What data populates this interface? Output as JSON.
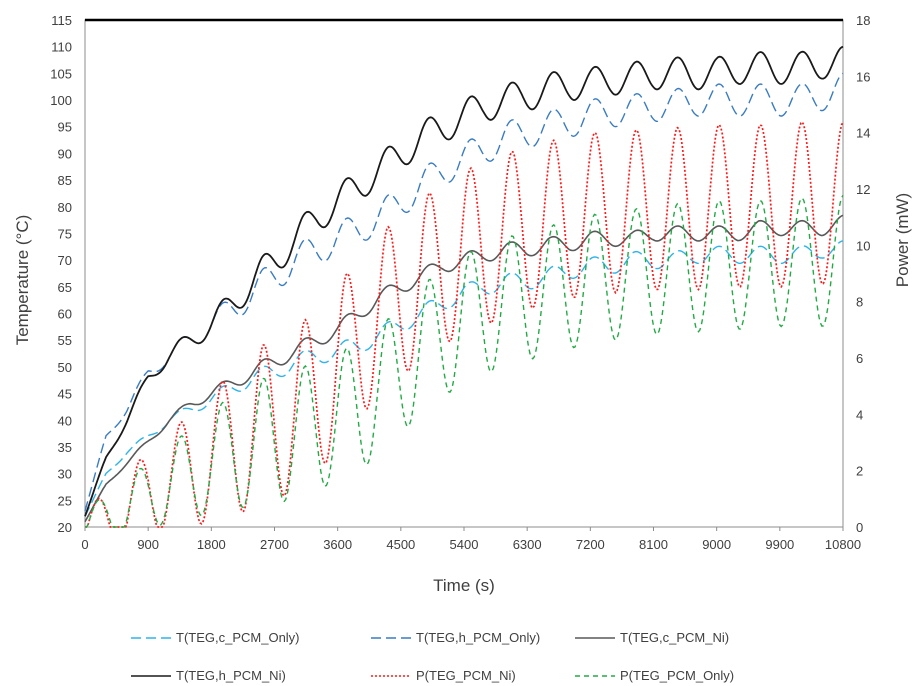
{
  "chart_data": {
    "type": "line",
    "xlabel": "Time (s)",
    "ylabel": "Temperature (°C)",
    "y2label": "Power (mW)",
    "xlim": [
      0,
      10800
    ],
    "ylim": [
      20,
      115
    ],
    "y2lim": [
      0,
      18
    ],
    "xticks": [
      "0",
      "900",
      "1800",
      "2700",
      "3600",
      "4500",
      "5400",
      "6300",
      "7200",
      "8100",
      "9000",
      "9900",
      "10800"
    ],
    "yticks": [
      "20",
      "25",
      "30",
      "35",
      "40",
      "45",
      "50",
      "55",
      "60",
      "65",
      "70",
      "75",
      "80",
      "85",
      "90",
      "95",
      "100",
      "105",
      "110",
      "115"
    ],
    "y2ticks": [
      "0",
      "2",
      "4",
      "6",
      "8",
      "10",
      "12",
      "14",
      "16",
      "18"
    ],
    "grid": false,
    "legend_position": "bottom",
    "series": [
      {
        "name": "T(TEG,c_PCM_Only)",
        "axis": "left",
        "color": "#2eb4e8",
        "dash": "long-dash",
        "x": [
          0,
          300,
          600,
          900,
          1200,
          1500,
          1800,
          2100,
          2400,
          2700,
          3000,
          3300,
          3600,
          3900,
          4200,
          4500,
          4800,
          5100,
          5400,
          5700,
          6000,
          6300,
          6600,
          6900,
          7200,
          7500,
          7800,
          8100,
          8400,
          8700,
          9000,
          9300,
          9600,
          9900,
          10200,
          10500,
          10800
        ],
        "y": [
          22,
          30,
          34,
          37,
          40,
          42,
          44,
          46,
          48,
          49,
          51,
          52,
          53,
          54,
          56,
          58,
          60,
          62,
          64,
          65,
          66,
          66,
          67,
          68,
          69,
          69,
          70,
          70,
          70,
          71,
          71,
          71,
          71,
          71,
          71,
          72,
          72
        ]
      },
      {
        "name": "T(TEG,h_PCM_Only)",
        "axis": "left",
        "color": "#3a7cc2",
        "dash": "long-dash",
        "x": [
          0,
          300,
          600,
          900,
          1200,
          1500,
          1800,
          2100,
          2400,
          2700,
          3000,
          3300,
          3600,
          3900,
          4200,
          4500,
          4800,
          5100,
          5400,
          5700,
          6000,
          6300,
          6600,
          6900,
          7200,
          7500,
          7800,
          8100,
          8400,
          8700,
          9000,
          9300,
          9600,
          9900,
          10200,
          10500,
          10800
        ],
        "y": [
          23,
          37,
          42,
          49,
          52,
          55,
          58,
          61,
          64,
          67,
          70,
          72,
          74,
          76,
          78,
          81,
          84,
          87,
          89,
          91,
          93,
          94,
          95,
          96,
          97,
          98,
          98,
          99,
          99,
          100,
          100,
          100,
          100,
          100,
          100,
          101,
          102
        ]
      },
      {
        "name": "T(TEG,c_PCM_Ni)",
        "axis": "left",
        "color": "#595959",
        "dash": "solid",
        "x": [
          0,
          300,
          600,
          900,
          1200,
          1500,
          1800,
          2100,
          2400,
          2700,
          3000,
          3300,
          3600,
          3900,
          4200,
          4500,
          4800,
          5100,
          5400,
          5700,
          6000,
          6300,
          6600,
          6900,
          7200,
          7500,
          7800,
          8100,
          8400,
          8700,
          9000,
          9300,
          9600,
          9900,
          10200,
          10500,
          10800
        ],
        "y": [
          21,
          28,
          32,
          36,
          40,
          43,
          45,
          47,
          49,
          51,
          53,
          55,
          57,
          60,
          63,
          65,
          67,
          69,
          70,
          71,
          72,
          72,
          73,
          73,
          74,
          74,
          74,
          75,
          75,
          75,
          75,
          75,
          76,
          76,
          76,
          76,
          77
        ]
      },
      {
        "name": "T(TEG,h_PCM_Ni)",
        "axis": "left",
        "color": "#1a1a1a",
        "dash": "solid",
        "x": [
          0,
          300,
          600,
          900,
          1200,
          1500,
          1800,
          2100,
          2400,
          2700,
          3000,
          3300,
          3600,
          3900,
          4200,
          4500,
          4800,
          5100,
          5400,
          5700,
          6000,
          6300,
          6600,
          6900,
          7200,
          7500,
          7800,
          8100,
          8400,
          8700,
          9000,
          9300,
          9600,
          9900,
          10200,
          10500,
          10800
        ],
        "y": [
          22,
          33,
          40,
          48,
          52,
          55,
          58,
          62,
          66,
          70,
          74,
          78,
          81,
          84,
          87,
          90,
          93,
          95,
          97,
          99,
          100,
          101,
          102,
          103,
          103,
          104,
          104,
          105,
          105,
          105,
          105,
          106,
          106,
          106,
          106,
          107,
          107
        ]
      },
      {
        "name": "P(TEG_PCM_Ni)",
        "axis": "right",
        "color": "#ff1a1a",
        "dash": "dotted",
        "x": [
          0,
          300,
          600,
          900,
          1200,
          1500,
          1800,
          2100,
          2400,
          2700,
          3000,
          3300,
          3600,
          3900,
          4200,
          4500,
          4800,
          5100,
          5400,
          5700,
          6000,
          6300,
          6600,
          6900,
          7200,
          7500,
          7800,
          8100,
          8400,
          8700,
          9000,
          9300,
          9600,
          9900,
          10200,
          10500,
          10800
        ],
        "y": [
          0,
          0.2,
          0.5,
          1.3,
          1.6,
          2.0,
          2.5,
          3.0,
          3.4,
          3.8,
          4.2,
          4.8,
          5.6,
          6.8,
          7.5,
          8.2,
          8.8,
          9.3,
          9.8,
          10.0,
          10.4,
          10.6,
          10.8,
          11.0,
          11.1,
          11.2,
          11.2,
          11.3,
          11.3,
          11.3,
          11.4,
          11.4,
          11.4,
          11.4,
          11.5,
          11.5,
          11.5
        ]
      },
      {
        "name": "P(TEG_PCM_Only)",
        "axis": "right",
        "color": "#22aa44",
        "dash": "dashed",
        "x": [
          0,
          300,
          600,
          900,
          1200,
          1500,
          1800,
          2100,
          2400,
          2700,
          3000,
          3300,
          3600,
          3900,
          4200,
          4500,
          4800,
          5100,
          5400,
          5700,
          6000,
          6300,
          6600,
          6900,
          7200,
          7500,
          7800,
          8100,
          8400,
          8700,
          9000,
          9300,
          9600,
          9900,
          10200,
          10500,
          10800
        ],
        "y": [
          0,
          0.4,
          0.6,
          1.2,
          1.5,
          1.9,
          2.3,
          2.7,
          2.9,
          3.1,
          3.3,
          3.6,
          3.9,
          4.3,
          4.8,
          5.6,
          6.3,
          6.9,
          7.4,
          7.7,
          8.0,
          8.2,
          8.4,
          8.6,
          8.8,
          8.9,
          9.0,
          9.1,
          9.2,
          9.2,
          9.3,
          9.3,
          9.3,
          9.4,
          9.4,
          9.4,
          9.5
        ]
      }
    ]
  },
  "legend": {
    "row1": [
      {
        "label": "T(TEG,c_PCM_Only)",
        "series": 0
      },
      {
        "label": "T(TEG,h_PCM_Only)",
        "series": 1
      },
      {
        "label": "T(TEG,c_PCM_Ni)",
        "series": 2
      }
    ],
    "row2": [
      {
        "label": "T(TEG,h_PCM_Ni)",
        "series": 3
      },
      {
        "label": "P(TEG_PCM_Ni)",
        "series": 4
      },
      {
        "label": "P(TEG_PCM_Only)",
        "series": 5
      }
    ]
  }
}
